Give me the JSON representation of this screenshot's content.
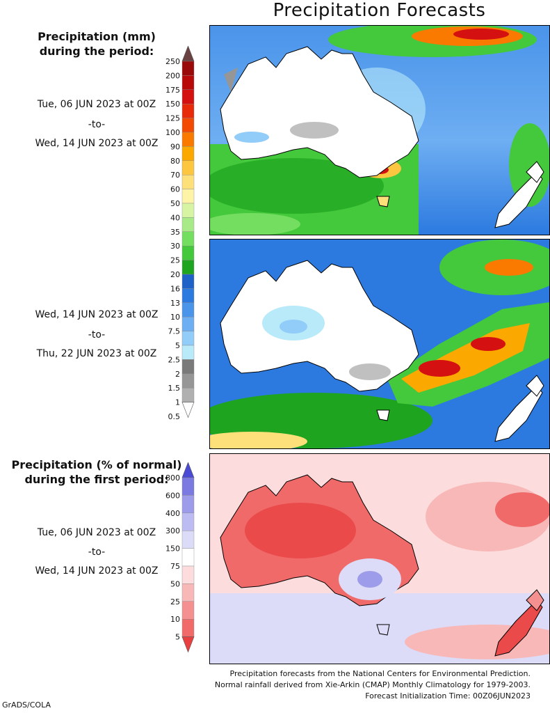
{
  "title": "Precipitation Forecasts",
  "panel1": {
    "header_line1": "Precipitation (mm)",
    "header_line2": "during the period:",
    "start": "Tue, 06 JUN 2023 at 00Z",
    "sep": "-to-",
    "end": "Wed, 14 JUN 2023 at 00Z"
  },
  "panel2": {
    "start": "Wed, 14 JUN 2023 at 00Z",
    "sep": "-to-",
    "end": "Thu, 22 JUN 2023 at 00Z"
  },
  "panel3": {
    "header_line1": "Precipitation (% of normal)",
    "header_line2": "during the first period:",
    "start": "Tue, 06 JUN 2023 at 00Z",
    "sep": "-to-",
    "end": "Wed, 14 JUN 2023 at 00Z"
  },
  "legend_mm": {
    "labels": [
      "250",
      "200",
      "175",
      "150",
      "125",
      "100",
      "90",
      "80",
      "70",
      "60",
      "50",
      "40",
      "35",
      "30",
      "25",
      "20",
      "16",
      "13",
      "10",
      "7.5",
      "5",
      "2.5",
      "2",
      "1.5",
      "1",
      "0.5"
    ],
    "colors": [
      "#7a1010",
      "#9a0a0a",
      "#b80a0a",
      "#d41010",
      "#e62a0a",
      "#f24a00",
      "#fa7a00",
      "#fba800",
      "#fcc640",
      "#fde07a",
      "#fdf4a8",
      "#d6f4a4",
      "#a8ea88",
      "#74de60",
      "#44c83c",
      "#1ea41e",
      "#1e62c8",
      "#2c7ae0",
      "#4a94ea",
      "#6eaef2",
      "#92ccf8",
      "#b8eafa",
      "#7a7a7a",
      "#969696",
      "#b0b0b0",
      "#cacaca"
    ],
    "top_arrow_color": "#6a4242",
    "bottom_arrow_color": "#ffffff"
  },
  "legend_pct": {
    "labels": [
      "800",
      "600",
      "400",
      "300",
      "150",
      "75",
      "50",
      "25",
      "10",
      "5"
    ],
    "colors": [
      "#5a5ad4",
      "#7a7ae0",
      "#9c9cea",
      "#bcbcf2",
      "#dcdcf8",
      "#ffffff",
      "#fcdcdc",
      "#f8b8b8",
      "#f49090",
      "#f06a6a",
      "#ea4a4a"
    ],
    "top_arrow_color": "#4a4ad4",
    "bottom_arrow_color": "#e84040"
  },
  "footer": {
    "line1": "Precipitation forecasts from the National Centers for Environmental Prediction.",
    "line2": "Normal rainfall derived from Xie-Arkin (CMAP) Monthly Climatology for 1979-2003.",
    "line3": "Forecast Initialization Time: 00Z06JUN2023"
  },
  "credit": "GrADS/COLA"
}
